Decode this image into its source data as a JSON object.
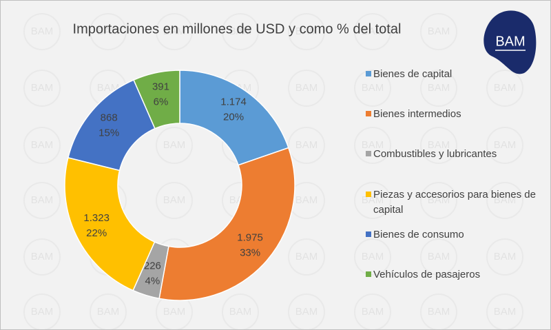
{
  "chart_data": {
    "type": "donut",
    "title": "Importaciones en millones de USD y como % del total",
    "categories": [
      "Bienes de capital",
      "Bienes intermedios",
      "Combustibles y lubricantes",
      "Piezas y accesorios para bienes de capital",
      "Bienes de consumo",
      "Vehículos de pasajeros"
    ],
    "values": [
      1174,
      1975,
      226,
      1323,
      868,
      391
    ],
    "value_labels": [
      "1.174",
      "1.975",
      "226",
      "1.323",
      "868",
      "391"
    ],
    "percent_values": [
      20,
      33,
      4,
      22,
      15,
      6
    ],
    "percent_labels": [
      "20%",
      "33%",
      "4%",
      "22%",
      "15%",
      "6%"
    ],
    "colors": [
      "#5b9bd5",
      "#ed7d31",
      "#a5a5a5",
      "#ffc000",
      "#4472c4",
      "#70ad47"
    ],
    "legend": "right",
    "watermark": "BAM",
    "logo": "BAM"
  }
}
